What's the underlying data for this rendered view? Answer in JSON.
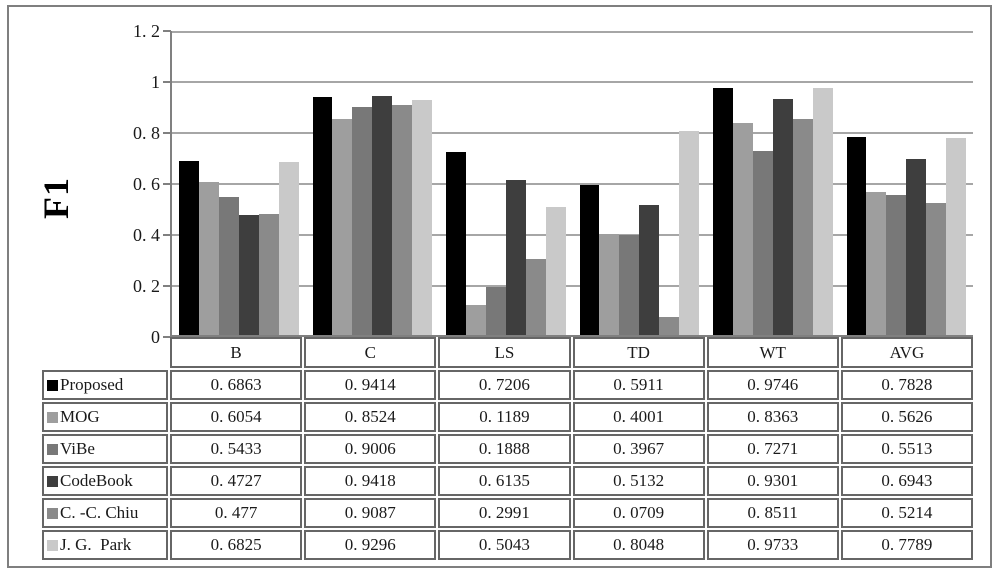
{
  "page": {
    "background": "#ffffff",
    "frame_border_color": "#7f7f7f"
  },
  "chart_data": {
    "type": "bar",
    "title": "",
    "ylabel": "F1",
    "xlabel": "",
    "ylim": [
      0,
      1.2
    ],
    "yticks": [
      0,
      0.2,
      0.4,
      0.6,
      0.8,
      1,
      1.2
    ],
    "ytick_labels": [
      "0",
      "0.2",
      "0.4",
      "0.6",
      "0.8",
      "1",
      "1.2"
    ],
    "grid": true,
    "gridline_color": "#a6a6a6",
    "axis_color": "#808080",
    "legend_position": "table-rows-left",
    "categories": [
      "B",
      "C",
      "LS",
      "TD",
      "WT",
      "AVG"
    ],
    "series": [
      {
        "name": "Proposed",
        "color": "#000000",
        "values": [
          0.6863,
          0.9414,
          0.7206,
          0.5911,
          0.9746,
          0.7828
        ]
      },
      {
        "name": "MOG",
        "color": "#9e9e9e",
        "values": [
          0.6054,
          0.8524,
          0.1189,
          0.4001,
          0.8363,
          0.5626
        ]
      },
      {
        "name": "ViBe",
        "color": "#787878",
        "values": [
          0.5433,
          0.9006,
          0.1888,
          0.3967,
          0.7271,
          0.5513
        ]
      },
      {
        "name": "CodeBook",
        "color": "#3e3e3e",
        "values": [
          0.4727,
          0.9418,
          0.6135,
          0.5132,
          0.9301,
          0.6943
        ]
      },
      {
        "name": "C.-C.Chiu",
        "color": "#8a8a8a",
        "values": [
          0.477,
          0.9087,
          0.2991,
          0.0709,
          0.8511,
          0.5214
        ]
      },
      {
        "name": "J.G. Park",
        "color": "#c9c9c9",
        "values": [
          0.6825,
          0.9296,
          0.5043,
          0.8048,
          0.9733,
          0.7789
        ]
      }
    ]
  },
  "table": {
    "border_color": "#666666",
    "column_headers": [
      "B",
      "C",
      "LS",
      "TD",
      "WT",
      "AVG"
    ],
    "rows": [
      {
        "label": "Proposed",
        "swatch_color": "#000000",
        "values": [
          "0.6863",
          "0.9414",
          "0.7206",
          "0.5911",
          "0.9746",
          "0.7828"
        ]
      },
      {
        "label": "MOG",
        "swatch_color": "#9e9e9e",
        "values": [
          "0.6054",
          "0.8524",
          "0.1189",
          "0.4001",
          "0.8363",
          "0.5626"
        ]
      },
      {
        "label": "ViBe",
        "swatch_color": "#787878",
        "values": [
          "0.5433",
          "0.9006",
          "0.1888",
          "0.3967",
          "0.7271",
          "0.5513"
        ]
      },
      {
        "label": "CodeBook",
        "swatch_color": "#3e3e3e",
        "values": [
          "0.4727",
          "0.9418",
          "0.6135",
          "0.5132",
          "0.9301",
          "0.6943"
        ]
      },
      {
        "label": "C.-C.Chiu",
        "swatch_color": "#8a8a8a",
        "values": [
          "0.477",
          "0.9087",
          "0.2991",
          "0.0709",
          "0.8511",
          "0.5214"
        ]
      },
      {
        "label": "J.G. Park",
        "swatch_color": "#c9c9c9",
        "values": [
          "0.6825",
          "0.9296",
          "0.5043",
          "0.8048",
          "0.9733",
          "0.7789"
        ]
      }
    ]
  }
}
